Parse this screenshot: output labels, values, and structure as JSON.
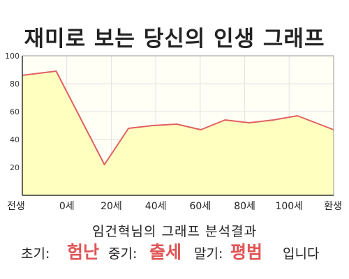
{
  "title": "재미로 보는 당신의 인생 그래프",
  "chart_data": {
    "type": "area",
    "x_categories": [
      "전생",
      "0세",
      "20세",
      "40세",
      "60세",
      "80세",
      "100세",
      "환생"
    ],
    "x": [
      -14,
      0,
      20,
      30,
      40,
      50,
      60,
      70,
      80,
      90,
      100,
      115
    ],
    "y": [
      86,
      89,
      22,
      48,
      50,
      51,
      47,
      54,
      52,
      54,
      57,
      47
    ],
    "ylim": [
      0,
      100
    ],
    "y_ticks": [
      20,
      40,
      60,
      80,
      100
    ],
    "grid": true,
    "colors": {
      "fill": "#ffffc0",
      "line": "#e06060",
      "grid": "#e2e2e2",
      "plot_bg": "#fffff5"
    }
  },
  "subtitle": "임건혁님의 그래프 분석결과",
  "result": {
    "early_label": "초기:",
    "early_value": "험난",
    "middle_label": "중기:",
    "middle_value": "출세",
    "late_label": "말기:",
    "late_value": "평범",
    "ending": "입니다"
  }
}
